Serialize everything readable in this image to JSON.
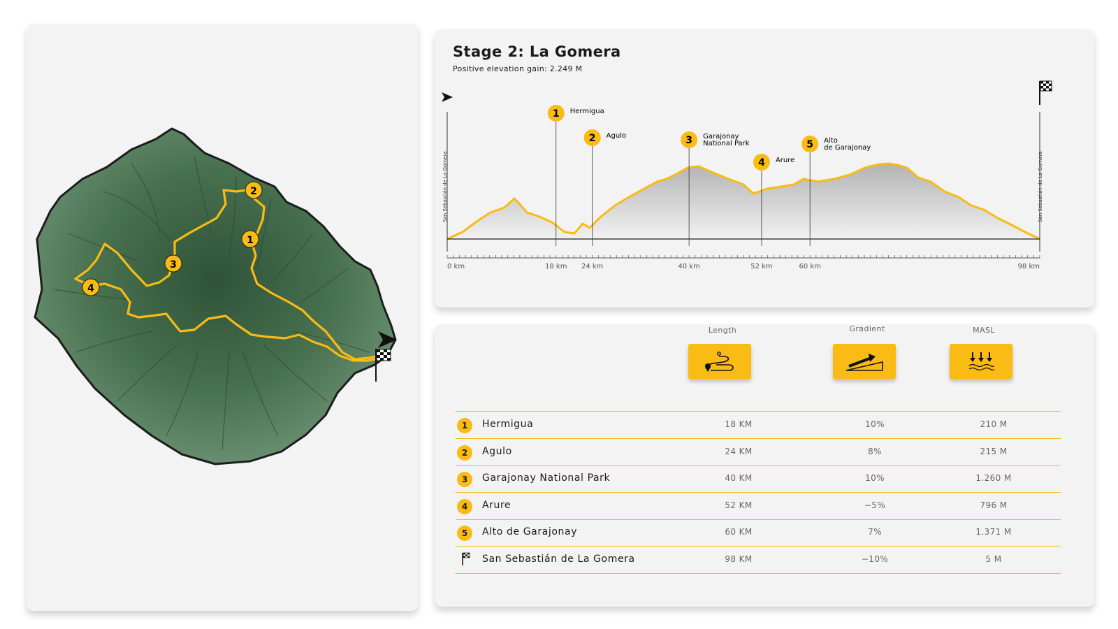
{
  "stage": {
    "title": "Stage 2: La Gomera",
    "subtitle": "Positive elevation gain: 2.249 M"
  },
  "profile": {
    "start_label": "San Sebastián de La Gomera",
    "end_label": "San Sebastián de La Gomera",
    "ticks": [
      {
        "km": 0,
        "label": "0 km"
      },
      {
        "km": 18,
        "label": "18 km"
      },
      {
        "km": 24,
        "label": "24 km"
      },
      {
        "km": 40,
        "label": "40 km"
      },
      {
        "km": 52,
        "label": "52 km"
      },
      {
        "km": 60,
        "label": "60 km"
      },
      {
        "km": 98,
        "label": "98 km"
      }
    ],
    "markers": [
      {
        "num": "1",
        "name": "Hermigua",
        "km": 18
      },
      {
        "num": "2",
        "name": "Agulo",
        "km": 24
      },
      {
        "num": "3",
        "name": "Garajonay National Park",
        "name_lines": [
          "Garajonay",
          "National Park"
        ],
        "km": 40
      },
      {
        "num": "4",
        "name": "Arure",
        "km": 52
      },
      {
        "num": "5",
        "name": "Alto de Garajonay",
        "name_lines": [
          "Alto",
          "de Garajonay"
        ],
        "km": 60
      }
    ]
  },
  "table": {
    "headers": {
      "length": "Length",
      "gradient": "Gradient",
      "masl": "MASL"
    },
    "icons": {
      "length": "route-length-icon",
      "gradient": "gradient-slope-icon",
      "masl": "sea-level-icon"
    },
    "rows": [
      {
        "num": "1",
        "name": "Hermigua",
        "length": "18 KM",
        "gradient": "10%",
        "masl": "210 M"
      },
      {
        "num": "2",
        "name": "Agulo",
        "length": "24 KM",
        "gradient": "8%",
        "masl": "215 M"
      },
      {
        "num": "3",
        "name": "Garajonay National Park",
        "length": "40 KM",
        "gradient": "10%",
        "masl": "1.260 M"
      },
      {
        "num": "4",
        "name": "Arure",
        "length": "52 KM",
        "gradient": "−5%",
        "masl": "796 M"
      },
      {
        "num": "5",
        "name": "Alto de Garajonay",
        "length": "60 KM",
        "gradient": "7%",
        "masl": "1.371 M"
      },
      {
        "num": "",
        "name": "San Sebastián de La Gomera",
        "length": "98 KM",
        "gradient": "−10%",
        "masl": "5 M"
      }
    ]
  },
  "map": {
    "markers": [
      "1",
      "2",
      "3",
      "4"
    ]
  },
  "colors": {
    "accent": "#f9bb14",
    "land": "#4f7a5a",
    "card": "#f3f3f3"
  }
}
